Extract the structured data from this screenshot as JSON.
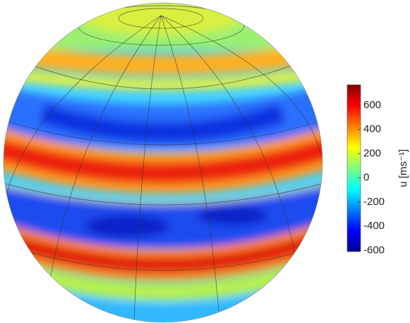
{
  "chart_data": {
    "type": "globe-colorbar",
    "colorbar_label": "u [ms⁻¹]",
    "clim": [
      -610,
      770
    ],
    "cticks": [
      -600,
      -400,
      -200,
      0,
      200,
      400,
      600
    ]
  }
}
